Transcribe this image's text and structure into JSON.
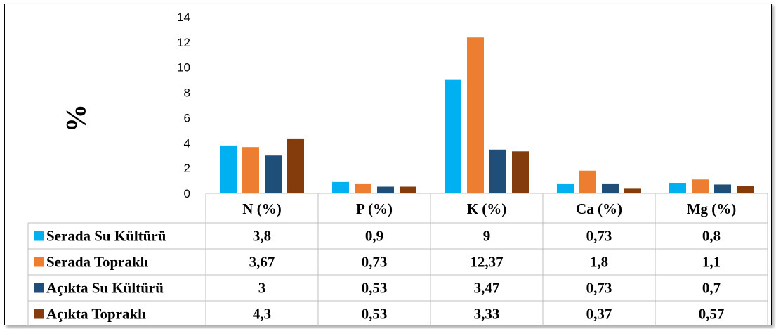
{
  "chart_data": {
    "type": "bar",
    "categories": [
      "N (%)",
      "P (%)",
      "K (%)",
      "Ca (%)",
      "Mg (%)"
    ],
    "series": [
      {
        "name": "Serada Su Kültürü",
        "color": "#00B0F0",
        "values": [
          3.8,
          0.9,
          9,
          0.73,
          0.8
        ],
        "labels": [
          "3,8",
          "0,9",
          "9",
          "0,73",
          "0,8"
        ]
      },
      {
        "name": "Serada Topraklı",
        "color": "#ED7D31",
        "values": [
          3.67,
          0.73,
          12.37,
          1.8,
          1.1
        ],
        "labels": [
          "3,67",
          "0,73",
          "12,37",
          "1,8",
          "1,1"
        ]
      },
      {
        "name": "Açıkta Su Kültürü",
        "color": "#1F4E79",
        "values": [
          3,
          0.53,
          3.47,
          0.73,
          0.7
        ],
        "labels": [
          "3",
          "0,53",
          "3,47",
          "0,73",
          "0,7"
        ]
      },
      {
        "name": "Açıkta Topraklı",
        "color": "#843C0C",
        "values": [
          4.3,
          0.53,
          3.33,
          0.37,
          0.57
        ],
        "labels": [
          "4,3",
          "0,53",
          "3,33",
          "0,37",
          "0,57"
        ]
      }
    ],
    "ylabel": "%",
    "ylim": [
      0,
      14
    ],
    "yticks": [
      0,
      2,
      4,
      6,
      8,
      10,
      12,
      14
    ],
    "grid": false,
    "legend": "data-table"
  }
}
